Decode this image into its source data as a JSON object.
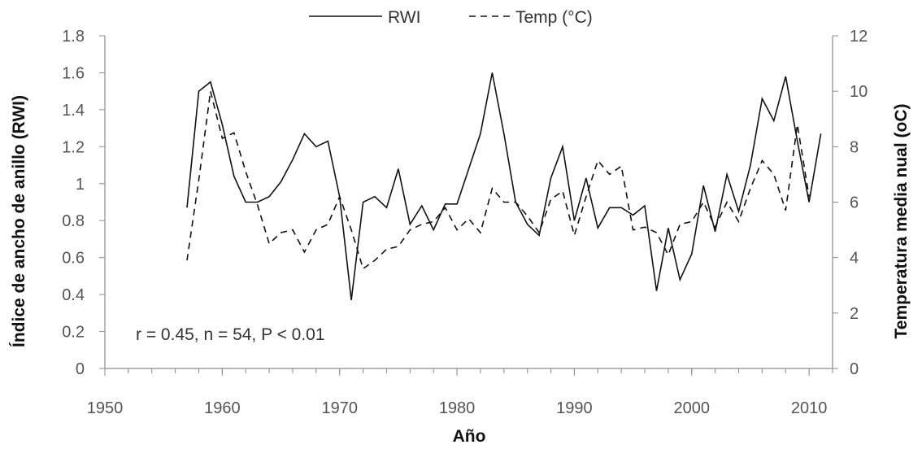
{
  "chart_data": {
    "type": "line",
    "title": "",
    "xlabel": "Año",
    "ylabel": "Índice de ancho de anillo (RWI)",
    "y2label": "Temperatura media nual (oC)",
    "annotation": "r = 0.45, n = 54, P < 0.01",
    "legend_position": "top-center",
    "grid": false,
    "xlim": [
      1950,
      2012
    ],
    "ylim": [
      0,
      1.8
    ],
    "y2lim": [
      0,
      12
    ],
    "x_ticks": [
      "1950",
      "1960",
      "1970",
      "1980",
      "1990",
      "2000",
      "2010"
    ],
    "y_ticks": [
      "0",
      "0.2",
      "0.4",
      "0.6",
      "0.8",
      "1",
      "1.2",
      "1.4",
      "1.6",
      "1.8"
    ],
    "y2_ticks": [
      "0",
      "2",
      "4",
      "6",
      "8",
      "10",
      "12"
    ],
    "series": [
      {
        "name": "RWI",
        "axis": "left",
        "style": "solid",
        "color": "#111111",
        "x": [
          1957,
          1958,
          1959,
          1960,
          1961,
          1962,
          1963,
          1964,
          1965,
          1966,
          1967,
          1968,
          1969,
          1970,
          1971,
          1972,
          1973,
          1974,
          1975,
          1976,
          1977,
          1978,
          1979,
          1980,
          1981,
          1982,
          1983,
          1984,
          1985,
          1986,
          1987,
          1988,
          1989,
          1990,
          1991,
          1992,
          1993,
          1994,
          1995,
          1996,
          1997,
          1998,
          1999,
          2000,
          2001,
          2002,
          2003,
          2004,
          2005,
          2006,
          2007,
          2008,
          2009,
          2010,
          2011
        ],
        "y": [
          0.87,
          1.5,
          1.55,
          1.32,
          1.04,
          0.9,
          0.9,
          0.93,
          1.01,
          1.13,
          1.27,
          1.2,
          1.23,
          0.93,
          0.37,
          0.9,
          0.93,
          0.87,
          1.08,
          0.78,
          0.88,
          0.75,
          0.89,
          0.89,
          1.08,
          1.27,
          1.6,
          1.27,
          0.9,
          0.78,
          0.72,
          1.03,
          1.2,
          0.8,
          1.03,
          0.76,
          0.87,
          0.87,
          0.83,
          0.88,
          0.42,
          0.76,
          0.48,
          0.62,
          0.99,
          0.74,
          1.05,
          0.85,
          1.1,
          1.46,
          1.34,
          1.58,
          1.23,
          0.9,
          1.27
        ]
      },
      {
        "name": "Temp (°C)",
        "axis": "right",
        "style": "dashed",
        "color": "#111111",
        "x": [
          1957,
          1958,
          1959,
          1960,
          1961,
          1962,
          1963,
          1964,
          1965,
          1966,
          1967,
          1968,
          1969,
          1970,
          1971,
          1972,
          1973,
          1974,
          1975,
          1976,
          1977,
          1978,
          1979,
          1980,
          1981,
          1982,
          1983,
          1984,
          1985,
          1986,
          1987,
          1988,
          1989,
          1990,
          1991,
          1992,
          1993,
          1994,
          1995,
          1996,
          1997,
          1998,
          1999,
          2000,
          2001,
          2002,
          2003,
          2004,
          2005,
          2006,
          2007,
          2008,
          2009,
          2010
        ],
        "y": [
          3.9,
          6.8,
          10.0,
          8.3,
          8.5,
          7.1,
          5.9,
          4.5,
          4.9,
          5.0,
          4.2,
          5.0,
          5.2,
          6.2,
          5.0,
          3.6,
          3.9,
          4.3,
          4.4,
          5.0,
          5.2,
          5.3,
          5.8,
          5.0,
          5.4,
          4.9,
          6.5,
          6.0,
          6.0,
          5.5,
          4.9,
          6.1,
          6.4,
          4.8,
          6.2,
          7.5,
          7.0,
          7.3,
          5.0,
          5.1,
          4.9,
          4.1,
          5.2,
          5.3,
          6.0,
          5.1,
          6.0,
          5.3,
          6.5,
          7.5,
          7.0,
          5.7,
          8.8,
          6.2
        ]
      }
    ]
  }
}
